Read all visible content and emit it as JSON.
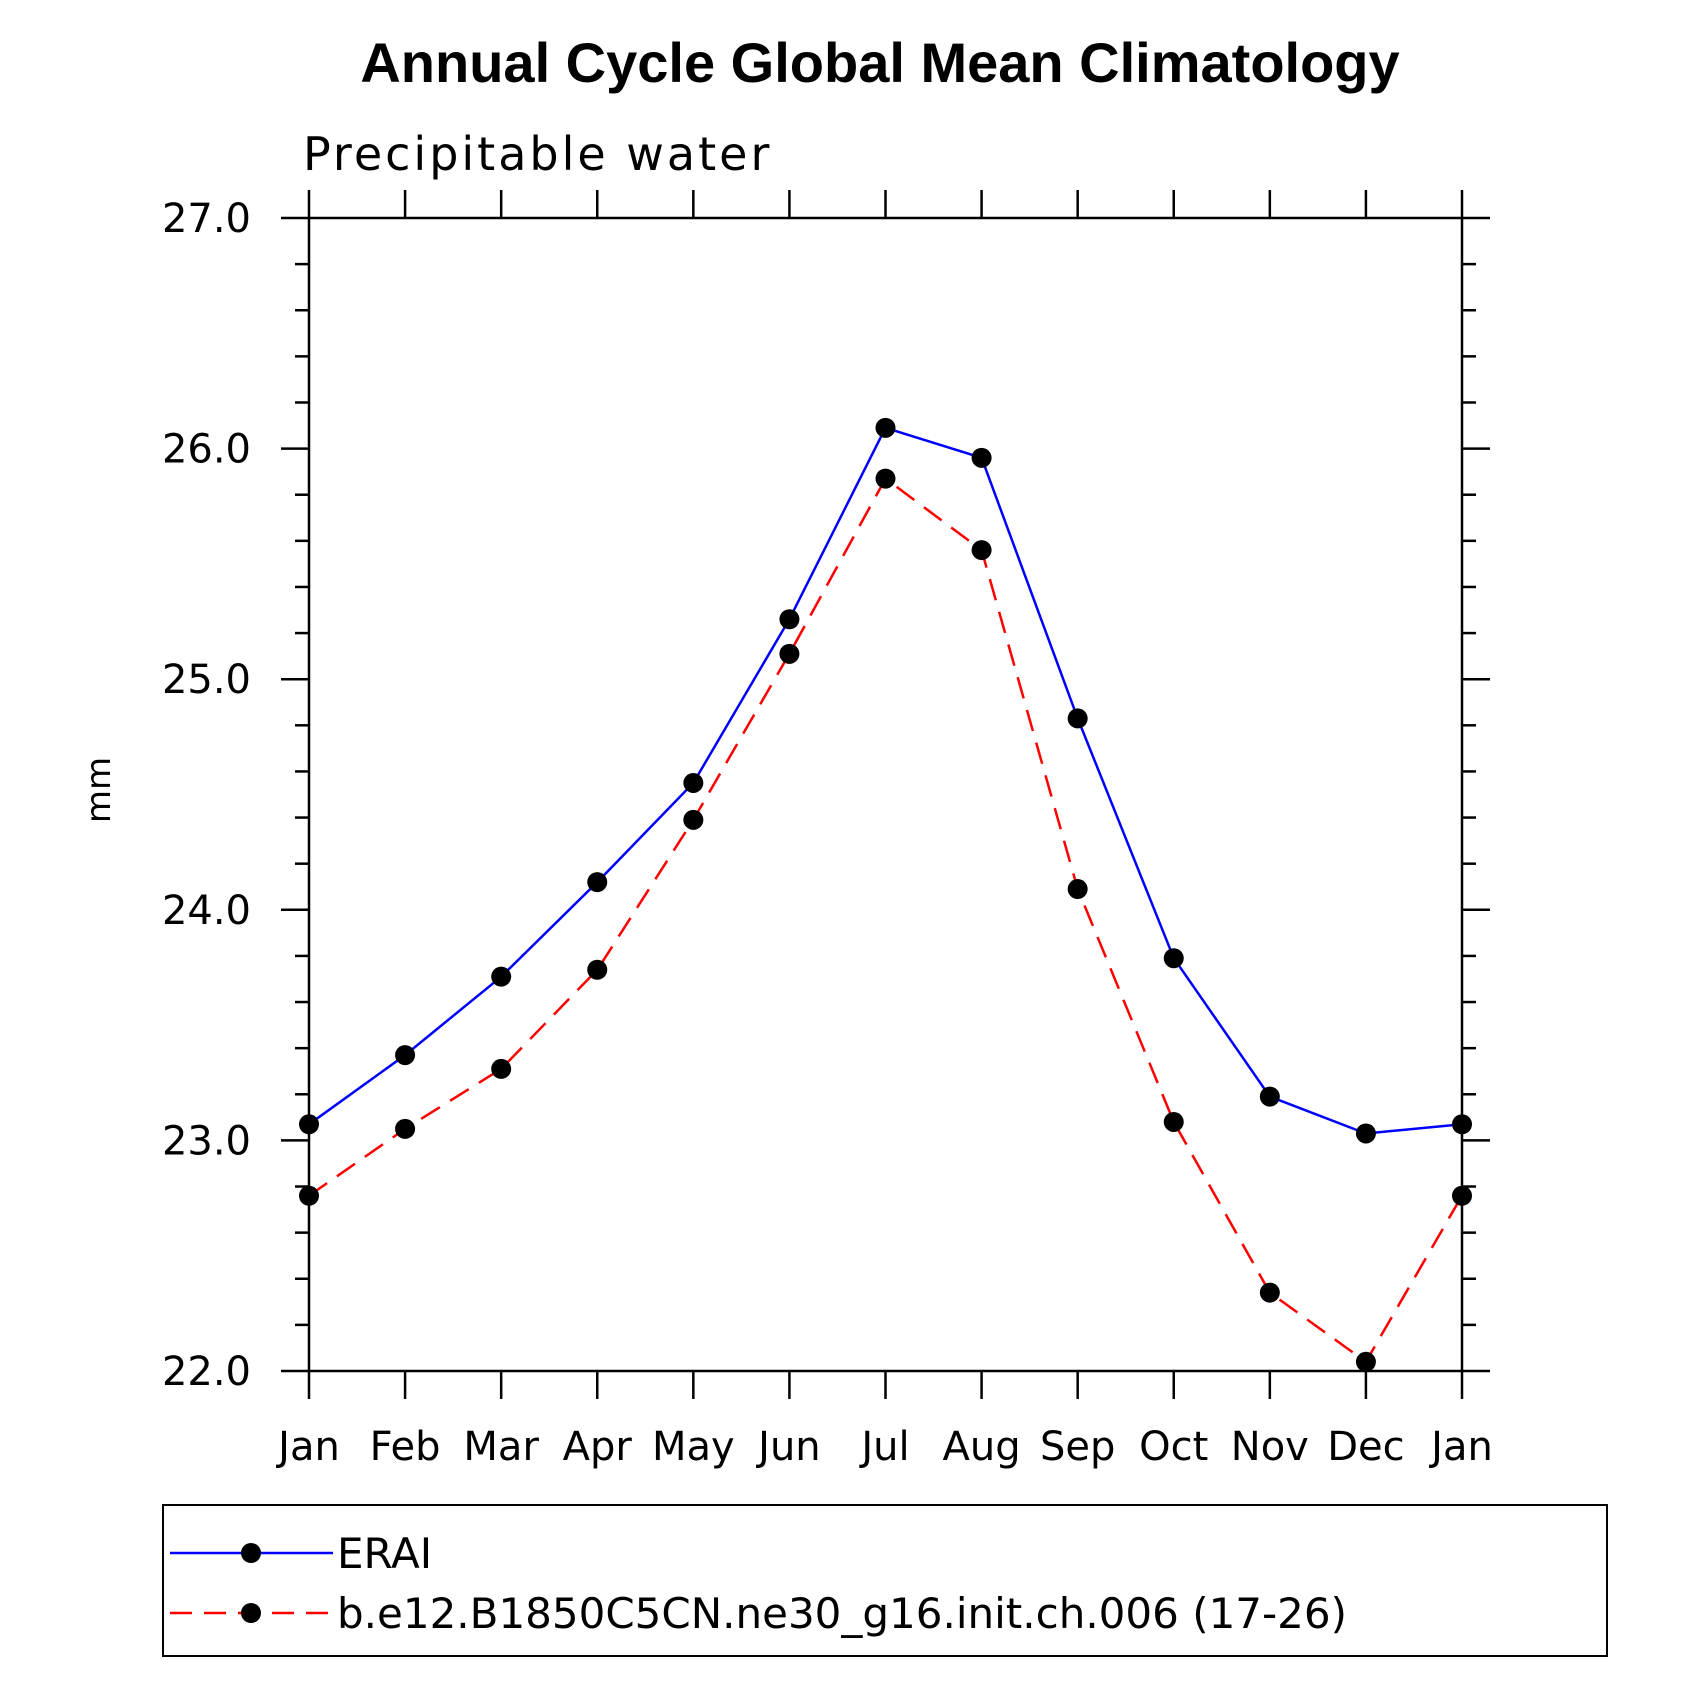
{
  "chart_data": {
    "type": "line",
    "title": "Annual Cycle Global Mean Climatology",
    "subtitle": "Precipitable water",
    "xlabel": "",
    "ylabel": "mm",
    "ylim": [
      22.0,
      27.0
    ],
    "yticks": [
      "22.0",
      "23.0",
      "24.0",
      "25.0",
      "26.0",
      "27.0"
    ],
    "categories": [
      "Jan",
      "Feb",
      "Mar",
      "Apr",
      "May",
      "Jun",
      "Jul",
      "Aug",
      "Sep",
      "Oct",
      "Nov",
      "Dec",
      "Jan"
    ],
    "grid": false,
    "legend_position": "bottom",
    "series": [
      {
        "name": "ERAI",
        "color": "#0000ff",
        "line_style": "solid",
        "marker": "filled-circle",
        "values": [
          23.07,
          23.37,
          23.71,
          24.12,
          24.55,
          25.26,
          26.09,
          25.96,
          24.83,
          23.79,
          23.19,
          23.03,
          23.07
        ]
      },
      {
        "name": "b.e12.B1850C5CN.ne30_g16.init.ch.006 (17-26)",
        "color": "#ff0000",
        "line_style": "dashed",
        "marker": "filled-circle",
        "values": [
          22.76,
          23.05,
          23.31,
          23.74,
          24.39,
          25.11,
          25.87,
          25.56,
          24.09,
          23.08,
          22.34,
          22.04,
          22.76
        ]
      }
    ]
  }
}
